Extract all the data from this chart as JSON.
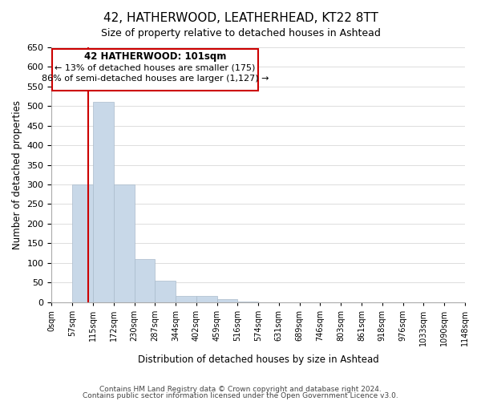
{
  "title1": "42, HATHERWOOD, LEATHERHEAD, KT22 8TT",
  "title2": "Size of property relative to detached houses in Ashtead",
  "xlabel": "Distribution of detached houses by size in Ashtead",
  "ylabel": "Number of detached properties",
  "bin_edges": [
    0,
    57,
    115,
    172,
    230,
    287,
    344,
    402,
    459,
    516,
    574,
    631,
    689,
    746,
    803,
    861,
    918,
    976,
    1033,
    1090,
    1148
  ],
  "bin_labels": [
    "0sqm",
    "57sqm",
    "115sqm",
    "172sqm",
    "230sqm",
    "287sqm",
    "344sqm",
    "402sqm",
    "459sqm",
    "516sqm",
    "574sqm",
    "631sqm",
    "689sqm",
    "746sqm",
    "803sqm",
    "861sqm",
    "918sqm",
    "976sqm",
    "1033sqm",
    "1090sqm",
    "1148sqm"
  ],
  "bar_heights": [
    0,
    300,
    510,
    300,
    110,
    55,
    15,
    15,
    7,
    2,
    0,
    0,
    0,
    0,
    0,
    0,
    0,
    0,
    0,
    0
  ],
  "bar_color": "#c8d8e8",
  "bar_edge_color": "#aabbcc",
  "ylim": [
    0,
    650
  ],
  "yticks": [
    0,
    50,
    100,
    150,
    200,
    250,
    300,
    350,
    400,
    450,
    500,
    550,
    600,
    650
  ],
  "property_size": 101,
  "red_line_x": 101,
  "annotation_title": "42 HATHERWOOD: 101sqm",
  "annotation_line1": "← 13% of detached houses are smaller (175)",
  "annotation_line2": "86% of semi-detached houses are larger (1,127) →",
  "annotation_box_color": "#ffffff",
  "annotation_box_edge": "#cc0000",
  "red_line_color": "#cc0000",
  "footer1": "Contains HM Land Registry data © Crown copyright and database right 2024.",
  "footer2": "Contains public sector information licensed under the Open Government Licence v3.0.",
  "background_color": "#ffffff",
  "grid_color": "#dddddd"
}
